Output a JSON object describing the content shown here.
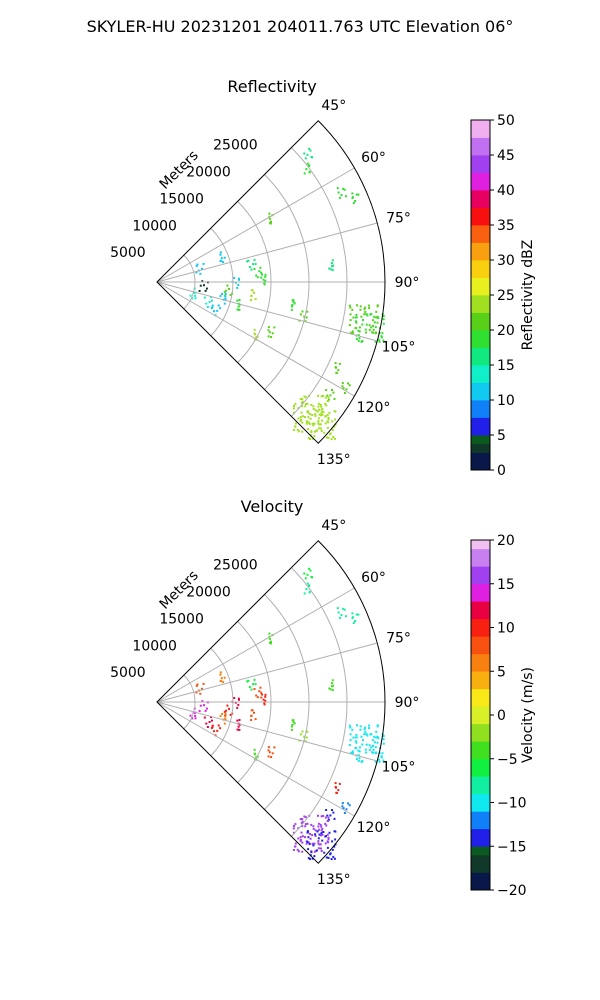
{
  "figure": {
    "title": "SKYLER-HU  20231201  204011.763 UTC Elevation 06°"
  },
  "chart_data": [
    {
      "type": "heatmap",
      "subtype": "polar-sector-ppi",
      "title": "Reflectivity",
      "radial_label": "Meters",
      "radial_ticks": [
        "5000",
        "10000",
        "15000",
        "20000",
        "25000"
      ],
      "angle_ticks": [
        "45°",
        "60°",
        "75°",
        "90°",
        "105°",
        "120°",
        "135°"
      ],
      "azimuth_range_deg": [
        45,
        135
      ],
      "rmax_m": 30000,
      "grid": true,
      "colorbar": {
        "label": "Reflectivity dBZ",
        "range": [
          0,
          50
        ],
        "ticks": [
          "0",
          "5",
          "10",
          "15",
          "20",
          "25",
          "30",
          "35",
          "40",
          "45",
          "50"
        ]
      },
      "echoes": [
        {
          "az": 52,
          "r": 24500,
          "value": 18
        },
        {
          "az": 49,
          "r": 26000,
          "value": 17
        },
        {
          "az": 64,
          "r": 27000,
          "value": 18
        },
        {
          "az": 67,
          "r": 28500,
          "value": 19
        },
        {
          "az": 61,
          "r": 17500,
          "value": 20
        },
        {
          "az": 69,
          "r": 9500,
          "value": 12
        },
        {
          "az": 72,
          "r": 6000,
          "value": 11
        },
        {
          "az": 79,
          "r": 12500,
          "value": 17
        },
        {
          "az": 84,
          "r": 13000,
          "value": 18
        },
        {
          "az": 84,
          "r": 22500,
          "value": 17
        },
        {
          "az": 88,
          "r": 13500,
          "value": 19
        },
        {
          "az": 90,
          "r": 10000,
          "value": 10
        },
        {
          "az": 94,
          "r": 6000,
          "value": 3
        },
        {
          "az": 96,
          "r": 9500,
          "value": 21
        },
        {
          "az": 97,
          "r": 13000,
          "value": 24
        },
        {
          "az": 99,
          "r": 18500,
          "value": 19
        },
        {
          "az": 100,
          "r": 27500,
          "value": 20
        },
        {
          "az": 102,
          "r": 28500,
          "value": 19
        },
        {
          "az": 103,
          "r": 19500,
          "value": 21
        },
        {
          "az": 104,
          "r": 8500,
          "value": 12
        },
        {
          "az": 106,
          "r": 10500,
          "value": 19
        },
        {
          "az": 108,
          "r": 4500,
          "value": 14
        },
        {
          "az": 111,
          "r": 7000,
          "value": 13
        },
        {
          "az": 115,
          "r": 8500,
          "value": 12
        },
        {
          "az": 113,
          "r": 16500,
          "value": 21
        },
        {
          "az": 117,
          "r": 15000,
          "value": 23
        },
        {
          "az": 115,
          "r": 26500,
          "value": 20
        },
        {
          "az": 119,
          "r": 28500,
          "value": 21
        },
        {
          "az": 123,
          "r": 27000,
          "value": 21
        },
        {
          "az": 129,
          "r": 26500,
          "value": 24
        },
        {
          "az": 132,
          "r": 26500,
          "value": 24
        },
        {
          "az": 131,
          "r": 28500,
          "value": 23
        }
      ]
    },
    {
      "type": "heatmap",
      "subtype": "polar-sector-ppi",
      "title": "Velocity",
      "radial_label": "Meters",
      "radial_ticks": [
        "5000",
        "10000",
        "15000",
        "20000",
        "25000"
      ],
      "angle_ticks": [
        "45°",
        "60°",
        "75°",
        "90°",
        "105°",
        "120°",
        "135°"
      ],
      "azimuth_range_deg": [
        45,
        135
      ],
      "rmax_m": 30000,
      "grid": true,
      "colorbar": {
        "label": "Velocity (m/s)",
        "range": [
          -20,
          20
        ],
        "ticks": [
          "−20",
          "−15",
          "−10",
          "−5",
          "0",
          "5",
          "10",
          "15",
          "20"
        ]
      },
      "echoes": [
        {
          "az": 52,
          "r": 24500,
          "value": -8
        },
        {
          "az": 49,
          "r": 26000,
          "value": -7
        },
        {
          "az": 64,
          "r": 27000,
          "value": -8
        },
        {
          "az": 67,
          "r": 28500,
          "value": -9
        },
        {
          "az": 61,
          "r": 17500,
          "value": -5
        },
        {
          "az": 69,
          "r": 9500,
          "value": 5
        },
        {
          "az": 72,
          "r": 6000,
          "value": 7
        },
        {
          "az": 79,
          "r": 12500,
          "value": -6
        },
        {
          "az": 84,
          "r": 13000,
          "value": 8
        },
        {
          "az": 84,
          "r": 22500,
          "value": -5
        },
        {
          "az": 88,
          "r": 13500,
          "value": 9
        },
        {
          "az": 90,
          "r": 10000,
          "value": 12
        },
        {
          "az": 94,
          "r": 6000,
          "value": 14
        },
        {
          "az": 96,
          "r": 9500,
          "value": 9
        },
        {
          "az": 97,
          "r": 13000,
          "value": 8
        },
        {
          "az": 99,
          "r": 18500,
          "value": -4
        },
        {
          "az": 100,
          "r": 27500,
          "value": -11
        },
        {
          "az": 102,
          "r": 28500,
          "value": -10
        },
        {
          "az": 103,
          "r": 19500,
          "value": -3
        },
        {
          "az": 104,
          "r": 8500,
          "value": 6
        },
        {
          "az": 106,
          "r": 10500,
          "value": 11
        },
        {
          "az": 108,
          "r": 4500,
          "value": 13
        },
        {
          "az": 111,
          "r": 7000,
          "value": 12
        },
        {
          "az": 115,
          "r": 8500,
          "value": 10
        },
        {
          "az": 113,
          "r": 16500,
          "value": 8
        },
        {
          "az": 117,
          "r": 15000,
          "value": -4
        },
        {
          "az": 115,
          "r": 26500,
          "value": 9
        },
        {
          "az": 119,
          "r": 28500,
          "value": -12
        },
        {
          "az": 123,
          "r": 27000,
          "value": -14
        },
        {
          "az": 129,
          "r": 26500,
          "value": 16
        },
        {
          "az": 132,
          "r": 26500,
          "value": 16
        },
        {
          "az": 131,
          "r": 28500,
          "value": -15
        }
      ]
    }
  ]
}
